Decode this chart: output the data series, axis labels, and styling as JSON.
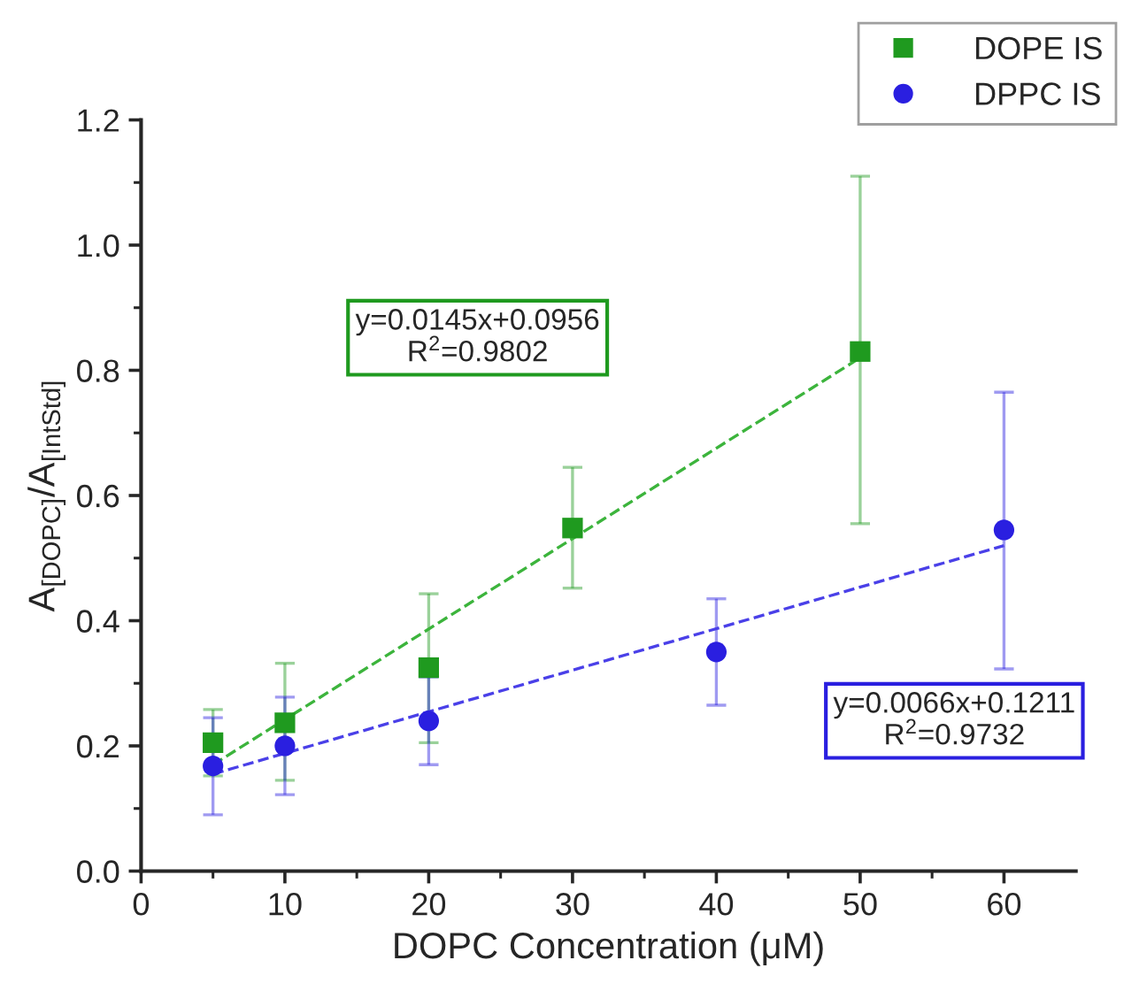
{
  "chart_data": {
    "type": "scatter",
    "xlabel": "DOPC Concentration (μM)",
    "ylabel": "A$_{[DOPC]}$/A$_{[IntStd]}$",
    "xlim": [
      0,
      65
    ],
    "xticks": [
      0,
      10,
      20,
      30,
      40,
      50,
      60
    ],
    "ylim": [
      0,
      1.2
    ],
    "yticks": [
      {
        "value": 0,
        "label": "0.0"
      },
      {
        "value": 0.2,
        "label": "0.2"
      },
      {
        "value": 0.4,
        "label": "0.4"
      },
      {
        "value": 0.6,
        "label": "0.6"
      },
      {
        "value": 0.8,
        "label": "0.8"
      },
      {
        "value": 1.0,
        "label": "1.0"
      },
      {
        "value": 1.2,
        "label": "1.2"
      }
    ],
    "grid": false,
    "legend": "top right",
    "series": [
      {
        "name": "DOPE IS",
        "marker": "square",
        "color": "#1f9a1f",
        "x": [
          5,
          10,
          20,
          30,
          50
        ],
        "values": [
          0.205,
          0.237,
          0.325,
          0.548,
          0.83
        ],
        "errors": [
          [
            0.152,
            0.258
          ],
          [
            0.145,
            0.332
          ],
          [
            0.205,
            0.443
          ],
          [
            0.452,
            0.645
          ],
          [
            0.555,
            1.11
          ]
        ]
      },
      {
        "name": "DPPC IS",
        "marker": "circle",
        "color": "#2a1fe0",
        "x": [
          5,
          10,
          20,
          40,
          60
        ],
        "values": [
          0.168,
          0.2,
          0.24,
          0.35,
          0.545
        ],
        "errors": [
          [
            0.09,
            0.245
          ],
          [
            0.122,
            0.278
          ],
          [
            0.17,
            0.31
          ],
          [
            0.265,
            0.435
          ],
          [
            0.323,
            0.765
          ]
        ]
      },
      {
        "type": "line",
        "line_style": "dashed",
        "color": "#3cb43c",
        "x": [
          5,
          50
        ],
        "values": [
          0.17,
          0.82
        ]
      },
      {
        "type": "line",
        "line_style": "dashed",
        "color": "#4a40e8",
        "x": [
          5,
          60
        ],
        "values": [
          0.155,
          0.52
        ]
      }
    ],
    "annotations": [
      "y=0.0145x+0.0956\nR$^{2}$=0.9802",
      "y=0.0066x+0.1211\nR$^{2}$=0.9732"
    ]
  }
}
